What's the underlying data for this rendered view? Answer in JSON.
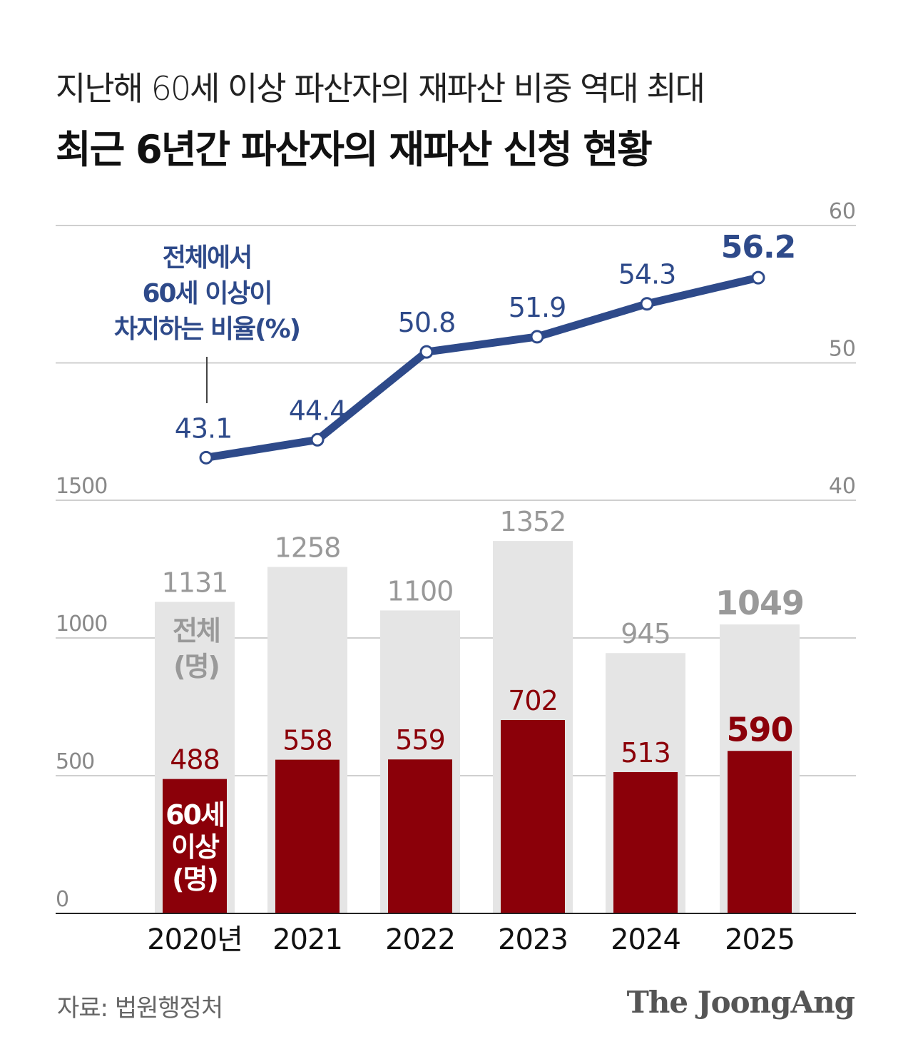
{
  "header": {
    "subtitle": "지난해 60세 이상 파산자의 재파산 비중 역대 최대",
    "title": "최근 6년간 파산자의 재파산 신청 현황"
  },
  "chart_data": [
    {
      "type": "line",
      "categories": [
        "2020년",
        "2021",
        "2022",
        "2023",
        "2024",
        "2025"
      ],
      "values": [
        43.1,
        44.4,
        50.8,
        51.9,
        54.3,
        56.2
      ],
      "annotation": [
        "전체에서",
        "60세 이상이",
        "차지하는 비율(%)"
      ],
      "ylim": [
        40,
        60
      ],
      "yticks": [
        40,
        50,
        60
      ],
      "axis_side": "right",
      "color": "#2e4a8a",
      "grid": true
    },
    {
      "type": "bar",
      "categories": [
        "2020년",
        "2021",
        "2022",
        "2023",
        "2024",
        "2025"
      ],
      "series": [
        {
          "name": "전체 (명)",
          "label_lines": [
            "전체",
            "(명)"
          ],
          "values": [
            1131,
            1258,
            1100,
            1352,
            945,
            1049
          ],
          "color": "#e5e5e5",
          "label_color": "#999999"
        },
        {
          "name": "60세 이상 (명)",
          "label_lines": [
            "60세",
            "이상",
            "(명)"
          ],
          "values": [
            488,
            558,
            559,
            702,
            513,
            590
          ],
          "color": "#8b0009",
          "label_color": "#8b0009"
        }
      ],
      "ylim": [
        0,
        1500
      ],
      "yticks": [
        0,
        500,
        1000,
        1500
      ],
      "axis_side": "left",
      "grid": true,
      "overlay": true
    }
  ],
  "footer": {
    "source": "자료: 법원행정처",
    "logo": "The JoongAng"
  }
}
